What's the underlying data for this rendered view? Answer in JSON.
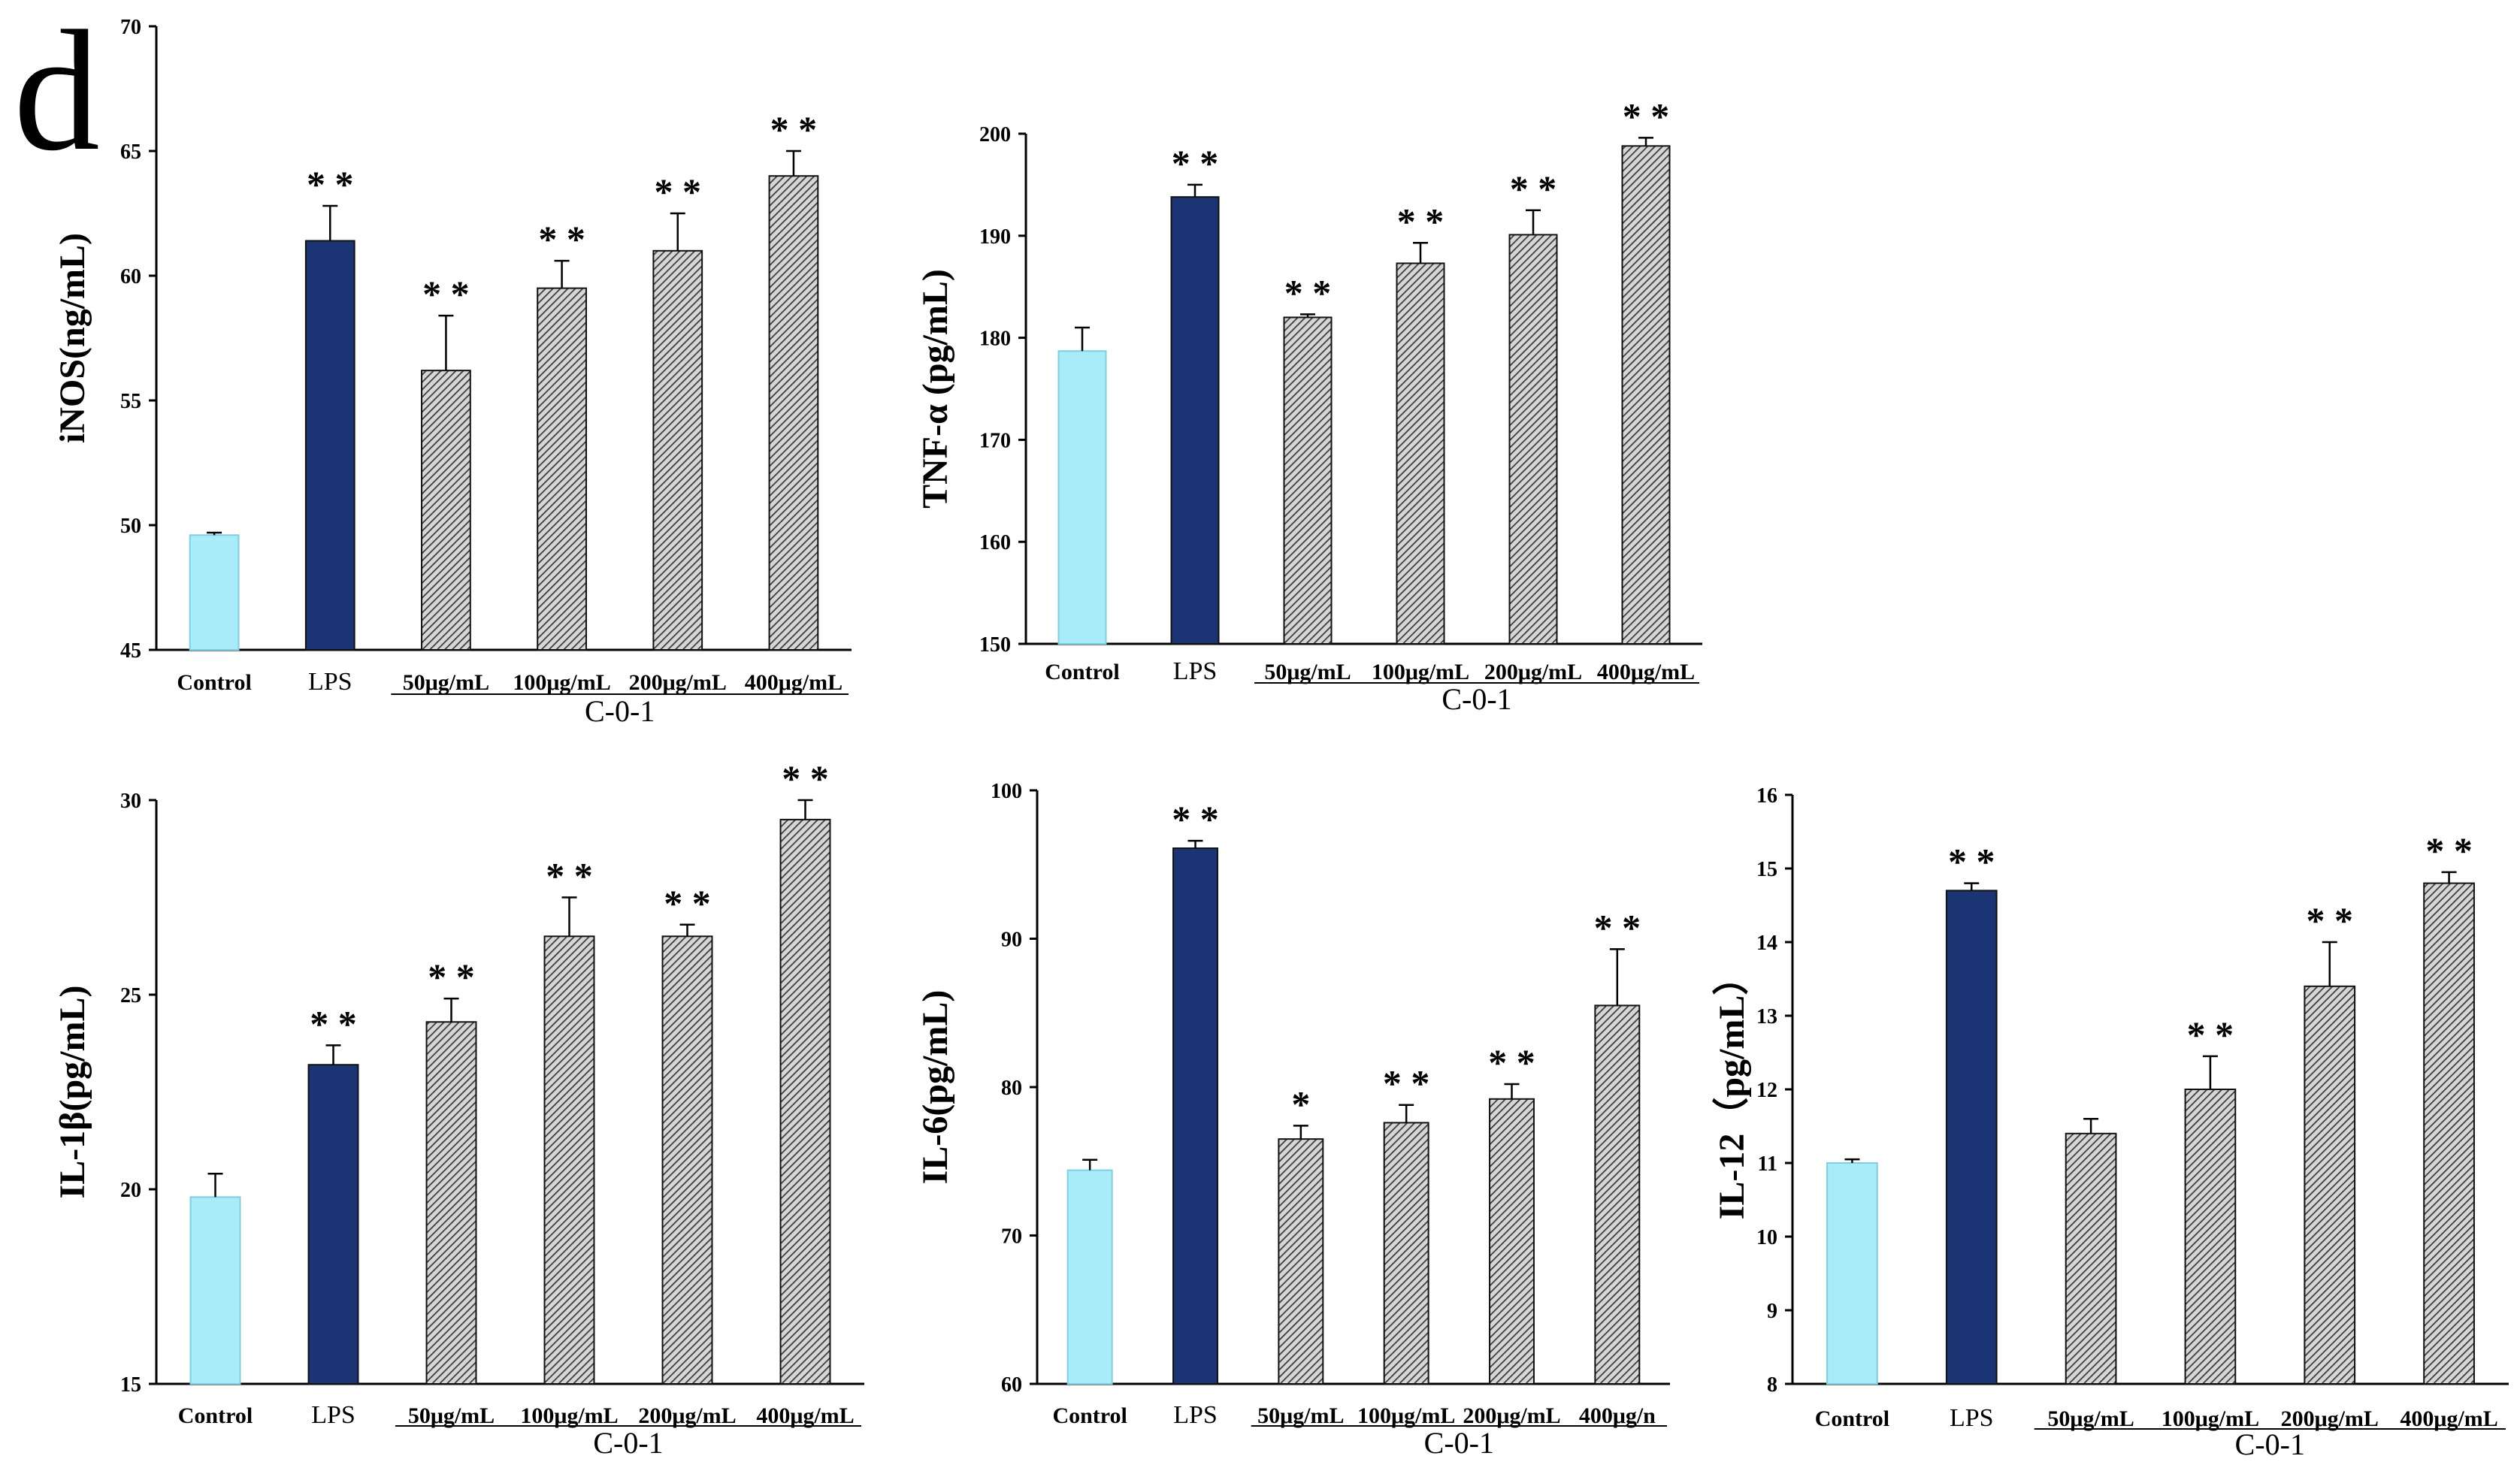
{
  "panel_label": "d",
  "colors": {
    "control": "#a7ecf8",
    "lps": "#1b3474",
    "treatment": "#8a8a8a",
    "axis": "#000000"
  },
  "chart_data": [
    {
      "type": "bar",
      "id": "inos",
      "title": "",
      "ylabel": "iNOS(ng/mL)",
      "ylim": [
        45,
        70
      ],
      "yticks": [
        45,
        50,
        55,
        60,
        65,
        70
      ],
      "categories": [
        "Control",
        "LPS",
        "50μg/mL",
        "100μg/mL",
        "200μg/mL",
        "400μg/mL"
      ],
      "group_label": "C-0-1",
      "values": [
        49.6,
        61.4,
        56.2,
        59.5,
        61.0,
        64.0
      ],
      "errors": [
        0.1,
        1.4,
        2.2,
        1.1,
        1.5,
        1.0
      ],
      "significance": [
        "",
        "**",
        "**",
        "**",
        "**",
        "**"
      ]
    },
    {
      "type": "bar",
      "id": "tnf",
      "title": "",
      "ylabel": "TNF-α (pg/mL)",
      "ylim": [
        150,
        200
      ],
      "yticks": [
        150,
        160,
        170,
        180,
        190,
        200
      ],
      "categories": [
        "Control",
        "LPS",
        "50μg/mL",
        "100μg/mL",
        "200μg/mL",
        "400μg/mL"
      ],
      "group_label": "C-0-1",
      "values": [
        178.7,
        193.8,
        182.0,
        187.3,
        190.1,
        198.8
      ],
      "errors": [
        2.3,
        1.2,
        0.3,
        2.0,
        2.4,
        0.8
      ],
      "significance": [
        "",
        "**",
        "**",
        "**",
        "**",
        "**"
      ]
    },
    {
      "type": "bar",
      "id": "il1b",
      "title": "",
      "ylabel": "IL-1β(pg/mL)",
      "ylim": [
        15,
        30
      ],
      "yticks": [
        15,
        20,
        25,
        30
      ],
      "categories": [
        "Control",
        "LPS",
        "50μg/mL",
        "100μg/mL",
        "200μg/mL",
        "400μg/mL"
      ],
      "group_label": "C-0-1",
      "values": [
        19.8,
        23.2,
        24.3,
        26.5,
        26.5,
        29.5
      ],
      "errors": [
        0.6,
        0.5,
        0.6,
        1.0,
        0.3,
        0.5
      ],
      "significance": [
        "",
        "**",
        "**",
        "**",
        "**",
        "**"
      ]
    },
    {
      "type": "bar",
      "id": "il6",
      "title": "",
      "ylabel": "IL-6(pg/mL)",
      "ylim": [
        60,
        100
      ],
      "yticks": [
        60,
        70,
        80,
        90,
        100
      ],
      "categories": [
        "Control",
        "LPS",
        "50μg/mL",
        "100μg/mL",
        "200μg/mL",
        "400μg/n"
      ],
      "group_label": "C-0-1",
      "values": [
        74.4,
        96.1,
        76.5,
        77.6,
        79.2,
        85.5
      ],
      "errors": [
        0.7,
        0.5,
        0.9,
        1.2,
        1.0,
        3.8
      ],
      "significance": [
        "",
        "**",
        "*",
        "**",
        "**",
        "**"
      ]
    },
    {
      "type": "bar",
      "id": "il12",
      "title": "",
      "ylabel": "IL-12（pg/mL）",
      "ylim": [
        8,
        16
      ],
      "yticks": [
        8,
        9,
        10,
        11,
        12,
        13,
        14,
        15,
        16
      ],
      "categories": [
        "Control",
        "LPS",
        "50μg/mL",
        "100μg/mL",
        "200μg/mL",
        "400μg/mL"
      ],
      "group_label": "C-0-1",
      "values": [
        11.0,
        14.7,
        11.4,
        12.0,
        13.4,
        14.8
      ],
      "errors": [
        0.05,
        0.1,
        0.2,
        0.45,
        0.6,
        0.15
      ],
      "significance": [
        "",
        "**",
        "",
        "**",
        "**",
        "**"
      ]
    }
  ]
}
